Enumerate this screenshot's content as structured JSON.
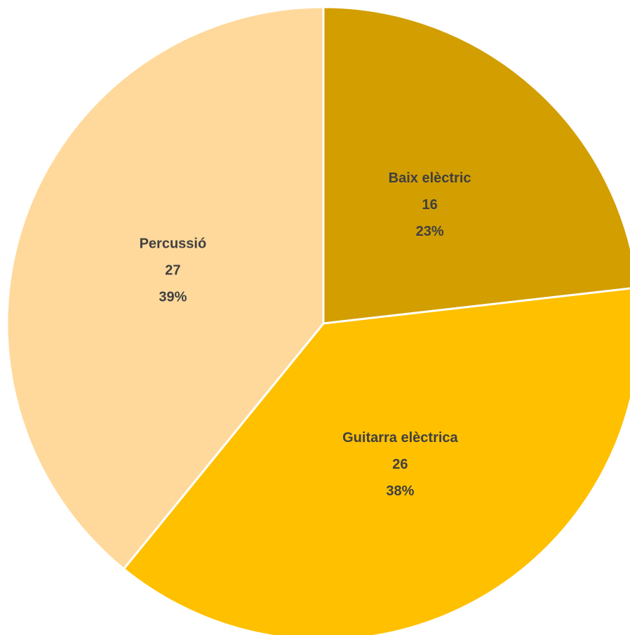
{
  "chart_data": {
    "type": "pie",
    "title": "",
    "slices": [
      {
        "label": "Baix elèctric",
        "value": 16,
        "percent": "23%",
        "color": "#D29E00"
      },
      {
        "label": "Guitarra elèctrica",
        "value": 26,
        "percent": "38%",
        "color": "#FFC000"
      },
      {
        "label": "Percussió",
        "value": 27,
        "percent": "39%",
        "color": "#FFD99C"
      }
    ],
    "start_angle_deg": 0,
    "direction": "clockwise",
    "legend": "none"
  }
}
